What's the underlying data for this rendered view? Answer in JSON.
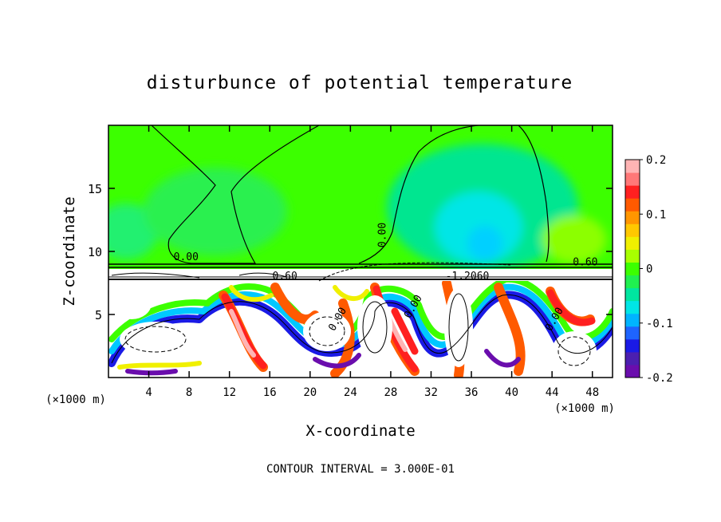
{
  "chart_data": {
    "type": "heatmap",
    "title": "disturbunce of potential temperature",
    "xlabel": "X-coordinate",
    "ylabel": "Z-coordinate",
    "x_unit": "(×1000 m)",
    "y_unit": "(×1000 m)",
    "xlim": [
      0,
      50
    ],
    "ylim": [
      0,
      20
    ],
    "x_ticks": [
      4,
      8,
      12,
      16,
      20,
      24,
      28,
      32,
      36,
      40,
      44,
      48
    ],
    "y_ticks": [
      5,
      10,
      15
    ],
    "footer": "CONTOUR INTERVAL = 3.000E-01",
    "colorbar": {
      "range": [
        -0.2,
        0.2
      ],
      "ticks": [
        "0.2",
        "0.1",
        "0",
        "-0.1",
        "-0.2"
      ],
      "colors": [
        "#6a0dad",
        "#4b1fb0",
        "#1a1ae6",
        "#1e64ff",
        "#00b4ff",
        "#00e6e6",
        "#00e6a0",
        "#20f050",
        "#3cff00",
        "#a8ff00",
        "#f0f000",
        "#ffc800",
        "#ff9600",
        "#ff5a00",
        "#ff2020",
        "#ff7878",
        "#ffb4b4"
      ]
    },
    "contour_labels": [
      {
        "text": "0.00",
        "x": 7.7,
        "z": 9.3
      },
      {
        "text": "0.00",
        "x": 27.5,
        "z": 11.3,
        "rot": -90
      },
      {
        "text": "0.60",
        "x": 47.3,
        "z": 8.9
      },
      {
        "text": "0.60",
        "x": 17.5,
        "z": 7.8
      },
      {
        "text": "-1.2060",
        "x": 35.6,
        "z": 7.8
      },
      {
        "text": "0.00",
        "x": 23.0,
        "z": 4.5,
        "rot": -60
      },
      {
        "text": "0.00",
        "x": 30.5,
        "z": 5.5,
        "rot": -60
      },
      {
        "text": "0.00",
        "x": 44.5,
        "z": 4.5,
        "rot": -60
      }
    ]
  }
}
